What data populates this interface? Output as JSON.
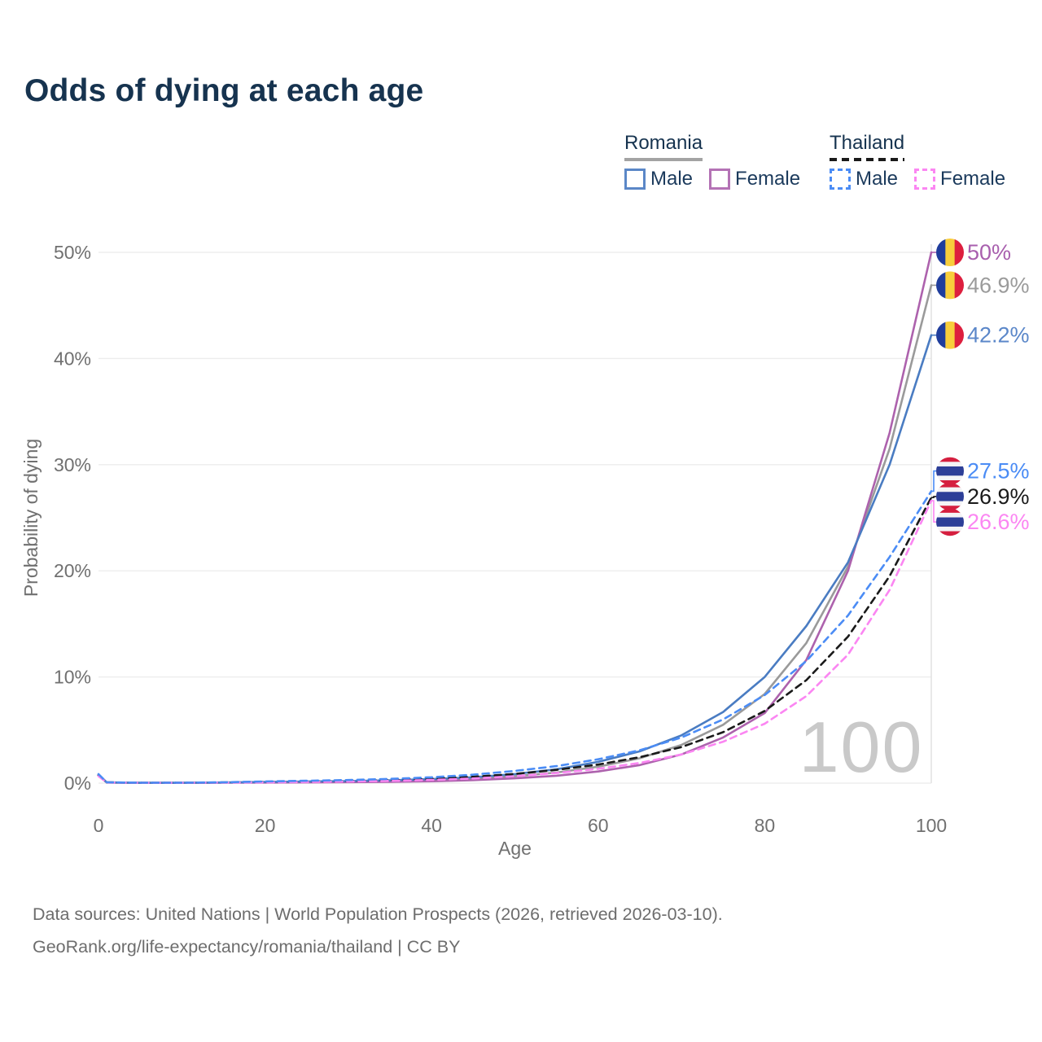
{
  "page": {
    "title": "Odds of dying at each age"
  },
  "legend": {
    "groups": [
      {
        "name": "Romania",
        "line_style": "solid",
        "line_color": "#a3a3a3",
        "items": [
          {
            "label": "Male",
            "color": "#5b87c7"
          },
          {
            "label": "Female",
            "color": "#b472b5"
          }
        ]
      },
      {
        "name": "Thailand",
        "line_style": "dashed",
        "line_color": "#1a1a1a",
        "items": [
          {
            "label": "Male",
            "color": "#4b8cf5"
          },
          {
            "label": "Female",
            "color": "#fb86f2"
          }
        ]
      }
    ]
  },
  "chart_data": {
    "type": "line",
    "title": "Odds of dying at each age",
    "xlabel": "Age",
    "ylabel": "Probability of dying",
    "xlim": [
      0,
      100
    ],
    "ylim": [
      0,
      50
    ],
    "x_ticks": [
      0,
      20,
      40,
      60,
      80,
      100
    ],
    "y_tick_labels": [
      "0%",
      "10%",
      "20%",
      "30%",
      "40%",
      "50%"
    ],
    "grid": "horizontal-only",
    "legend_position": "top-right",
    "hover_age_label": "100",
    "ages": [
      0,
      1,
      5,
      10,
      15,
      20,
      25,
      30,
      35,
      40,
      45,
      50,
      55,
      60,
      65,
      70,
      75,
      80,
      85,
      90,
      95,
      100
    ],
    "series": [
      {
        "id": "romania-both",
        "name": "Romania (both sexes)",
        "country": "romania",
        "sex": "both",
        "style": "solid",
        "color": "#9a9a9a",
        "values": [
          0.75,
          0.06,
          0.025,
          0.025,
          0.05,
          0.08,
          0.11,
          0.14,
          0.19,
          0.28,
          0.42,
          0.65,
          1.0,
          1.55,
          2.35,
          3.6,
          5.5,
          8.4,
          13.2,
          20.4,
          31.5,
          46.9
        ],
        "end_label": "46.9%",
        "end_value": 46.9,
        "label_at": 46.9,
        "label_color": "#9b9b9b"
      },
      {
        "id": "romania-female",
        "name": "Romania Female",
        "country": "romania",
        "sex": "female",
        "style": "solid",
        "color": "#ad62ad",
        "values": [
          0.7,
          0.05,
          0.02,
          0.02,
          0.035,
          0.05,
          0.07,
          0.09,
          0.12,
          0.18,
          0.28,
          0.45,
          0.7,
          1.1,
          1.7,
          2.7,
          4.3,
          6.6,
          11.6,
          20.0,
          33.0,
          50.0
        ],
        "end_label": "50%",
        "end_value": 50.0,
        "label_at": 50.0,
        "label_color": "#a85fae"
      },
      {
        "id": "romania-male",
        "name": "Romania Male",
        "country": "romania",
        "sex": "male",
        "style": "solid",
        "color": "#4a7cc2",
        "values": [
          0.8,
          0.07,
          0.03,
          0.03,
          0.06,
          0.11,
          0.15,
          0.19,
          0.26,
          0.38,
          0.55,
          0.85,
          1.3,
          2.0,
          3.0,
          4.5,
          6.7,
          10.0,
          14.8,
          20.8,
          30.0,
          42.2
        ],
        "end_label": "42.2%",
        "end_value": 42.2,
        "label_at": 42.2,
        "label_color": "#5b87c9"
      },
      {
        "id": "thailand-both",
        "name": "Thailand (both sexes)",
        "country": "thailand",
        "sex": "both",
        "style": "dashed",
        "color": "#1a1a1a",
        "values": [
          0.75,
          0.07,
          0.035,
          0.035,
          0.065,
          0.12,
          0.16,
          0.21,
          0.29,
          0.41,
          0.6,
          0.87,
          1.25,
          1.75,
          2.45,
          3.4,
          4.8,
          6.8,
          9.7,
          13.8,
          19.5,
          26.9
        ],
        "end_label": "26.9%",
        "end_value": 26.9,
        "label_at": 27.0,
        "label_color": "#1a1a1a"
      },
      {
        "id": "thailand-female",
        "name": "Thailand Female",
        "country": "thailand",
        "sex": "female",
        "style": "dashed",
        "color": "#fb86f2",
        "values": [
          0.65,
          0.06,
          0.03,
          0.03,
          0.05,
          0.08,
          0.11,
          0.15,
          0.21,
          0.3,
          0.44,
          0.65,
          0.95,
          1.35,
          1.9,
          2.7,
          3.9,
          5.6,
          8.2,
          12.1,
          18.2,
          26.6
        ],
        "end_label": "26.6%",
        "end_value": 26.6,
        "label_at": 24.6,
        "label_color": "#fb86f2"
      },
      {
        "id": "thailand-male",
        "name": "Thailand Male",
        "country": "thailand",
        "sex": "male",
        "style": "dashed",
        "color": "#4b8cf5",
        "values": [
          0.85,
          0.08,
          0.04,
          0.04,
          0.08,
          0.16,
          0.22,
          0.29,
          0.4,
          0.55,
          0.8,
          1.15,
          1.6,
          2.25,
          3.1,
          4.3,
          6.0,
          8.3,
          11.5,
          15.8,
          21.3,
          27.5
        ],
        "end_label": "27.5%",
        "end_value": 27.5,
        "label_at": 29.4,
        "label_color": "#4b8cf5"
      }
    ],
    "flag_colors": {
      "romania": [
        "#1f3d9c",
        "#f8ce3c",
        "#dd1f3e"
      ],
      "thailand": [
        "#d51f3f",
        "#f4f4f6",
        "#2d3f98"
      ]
    }
  },
  "footer": {
    "line1": "Data sources: United Nations | World Population Prospects (2026, retrieved 2026-03-10).",
    "line2": "GeoRank.org/life-expectancy/romania/thailand | CC BY"
  }
}
